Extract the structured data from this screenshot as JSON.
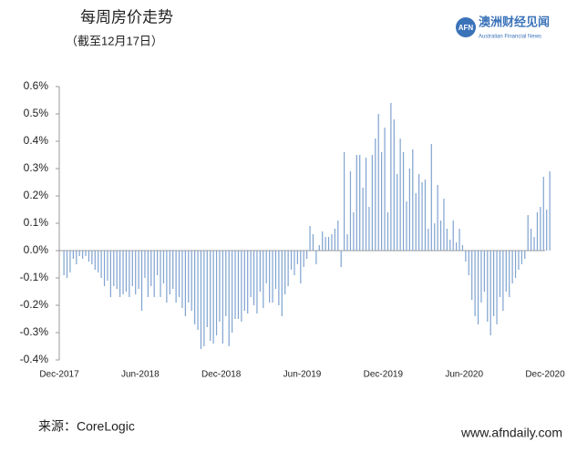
{
  "chart_data": {
    "type": "bar",
    "title": "每周房价走势",
    "subtitle": "（截至12月17日）",
    "source": "来源：CoreLogic",
    "website": "www.afndaily.com",
    "logo": {
      "mark": "AFN",
      "name": "澳洲财经见闻",
      "tagline": "Australian Financial News"
    },
    "color": "#7fa3d0",
    "categories": [
      "Dec-2017",
      null,
      null,
      null,
      null,
      null,
      null,
      null,
      null,
      null,
      null,
      null,
      null,
      null,
      null,
      null,
      null,
      null,
      null,
      null,
      null,
      null,
      null,
      null,
      null,
      null,
      "Jun-2018",
      null,
      null,
      null,
      null,
      null,
      null,
      null,
      null,
      null,
      null,
      null,
      null,
      null,
      null,
      null,
      null,
      null,
      null,
      null,
      null,
      null,
      null,
      null,
      null,
      null,
      "Dec-2018",
      null,
      null,
      null,
      null,
      null,
      null,
      null,
      null,
      null,
      null,
      null,
      null,
      null,
      null,
      null,
      null,
      null,
      null,
      null,
      null,
      null,
      null,
      null,
      null,
      null,
      "Jun-2019",
      null,
      null,
      null,
      null,
      null,
      null,
      null,
      null,
      null,
      null,
      null,
      null,
      null,
      null,
      null,
      null,
      null,
      null,
      null,
      null,
      null,
      null,
      null,
      null,
      null,
      "Dec-2019",
      null,
      null,
      null,
      null,
      null,
      null,
      null,
      null,
      null,
      null,
      null,
      null,
      null,
      null,
      null,
      null,
      null,
      null,
      null,
      null,
      null,
      null,
      null,
      null,
      null,
      "Jun-2020",
      null,
      null,
      null,
      null,
      null,
      null,
      null,
      null,
      null,
      null,
      null,
      null,
      null,
      null,
      null,
      null,
      null,
      null,
      null,
      null,
      null,
      null,
      null,
      null,
      null,
      "Dec-2020"
    ],
    "values": [
      -0.09,
      -0.1,
      -0.08,
      -0.03,
      -0.05,
      -0.02,
      -0.03,
      -0.02,
      -0.04,
      -0.05,
      -0.07,
      -0.08,
      -0.1,
      -0.13,
      -0.11,
      -0.17,
      -0.13,
      -0.14,
      -0.17,
      -0.16,
      -0.15,
      -0.17,
      -0.13,
      -0.16,
      -0.14,
      -0.22,
      -0.1,
      -0.17,
      -0.13,
      -0.17,
      -0.09,
      -0.17,
      -0.12,
      -0.19,
      -0.16,
      -0.14,
      -0.19,
      -0.17,
      -0.21,
      -0.24,
      -0.19,
      -0.22,
      -0.27,
      -0.29,
      -0.36,
      -0.35,
      -0.28,
      -0.33,
      -0.34,
      -0.31,
      -0.26,
      -0.34,
      -0.24,
      -0.35,
      -0.3,
      -0.25,
      -0.25,
      -0.26,
      -0.22,
      -0.23,
      -0.17,
      -0.2,
      -0.23,
      -0.15,
      -0.21,
      -0.12,
      -0.19,
      -0.19,
      -0.14,
      -0.2,
      -0.24,
      -0.16,
      -0.13,
      -0.07,
      -0.09,
      -0.05,
      -0.12,
      -0.06,
      -0.03,
      0.09,
      0.06,
      -0.05,
      0.02,
      0.07,
      0.05,
      0.05,
      0.06,
      0.08,
      0.11,
      -0.06,
      0.36,
      0.06,
      0.29,
      0.14,
      0.35,
      0.35,
      0.23,
      0.34,
      0.16,
      0.35,
      0.41,
      0.5,
      0.36,
      0.45,
      0.14,
      0.54,
      0.48,
      0.28,
      0.41,
      0.36,
      0.18,
      0.3,
      0.37,
      0.21,
      0.28,
      0.25,
      0.26,
      0.08,
      0.39,
      0.1,
      0.24,
      0.11,
      0.19,
      0.08,
      0.04,
      0.11,
      0.03,
      0.08,
      0.02,
      -0.04,
      -0.09,
      -0.18,
      -0.24,
      -0.27,
      -0.19,
      -0.15,
      -0.26,
      -0.31,
      -0.24,
      -0.27,
      -0.17,
      -0.22,
      -0.15,
      -0.17,
      -0.12,
      -0.1,
      -0.07,
      -0.05,
      -0.03,
      0.13,
      0.08,
      0.05,
      0.14,
      0.16,
      0.27,
      0.15,
      0.29
    ],
    "ylim": [
      -0.4,
      0.6
    ],
    "yticks": [
      {
        "value": -0.4,
        "label": "-0.4%"
      },
      {
        "value": -0.3,
        "label": "-0.3%"
      },
      {
        "value": -0.2,
        "label": "-0.2%"
      },
      {
        "value": -0.1,
        "label": "-0.1%"
      },
      {
        "value": 0,
        "label": "0.0%"
      },
      {
        "value": 0.1,
        "label": "0.1%"
      },
      {
        "value": 0.2,
        "label": "0.2%"
      },
      {
        "value": 0.3,
        "label": "0.3%"
      },
      {
        "value": 0.4,
        "label": "0.4%"
      },
      {
        "value": 0.5,
        "label": "0.5%"
      },
      {
        "value": 0.6,
        "label": "0.6%"
      }
    ],
    "grid": false
  }
}
